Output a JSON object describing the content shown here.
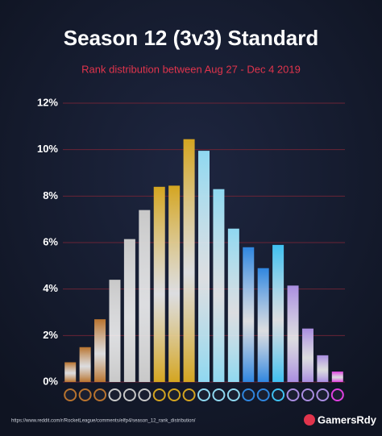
{
  "chart_data": {
    "type": "bar",
    "title": "Season 12 (3v3) Standard",
    "subtitle": "Rank distribution between Aug 27 - Dec 4 2019",
    "categories": [
      null,
      null,
      null,
      null,
      null,
      null,
      null,
      null,
      null,
      null,
      null,
      null,
      null,
      null,
      null,
      null,
      null,
      null,
      null
    ],
    "values": [
      0.85,
      1.5,
      2.7,
      4.4,
      6.15,
      7.4,
      8.4,
      8.45,
      10.45,
      9.95,
      8.3,
      6.6,
      5.8,
      4.9,
      5.9,
      4.15,
      2.3,
      1.15,
      0.45
    ],
    "colors": [
      "#b8732e",
      "#b8732e",
      "#b8732e",
      "#c8c8c8",
      "#c8c8c8",
      "#c8c8c8",
      "#d4a520",
      "#d4a520",
      "#d4a520",
      "#8fd8f0",
      "#8fd8f0",
      "#8fd8f0",
      "#2f86e0",
      "#2f86e0",
      "#3fc0f0",
      "#a98de0",
      "#a98de0",
      "#a98de0",
      "#e040e0"
    ],
    "ylim": [
      0,
      12
    ],
    "yticks": [
      {
        "value": 0,
        "label": "0%"
      },
      {
        "value": 2,
        "label": "2%"
      },
      {
        "value": 4,
        "label": "4%"
      },
      {
        "value": 6,
        "label": "6%"
      },
      {
        "value": 8,
        "label": "8%"
      },
      {
        "value": 10,
        "label": "10%"
      },
      {
        "value": 12,
        "label": "12%"
      }
    ],
    "grid": true,
    "source": "https://www.reddit.com/r/RocketLeague/comments/elfp4/season_12_rank_distribution/",
    "logo": "GamersRdy"
  }
}
